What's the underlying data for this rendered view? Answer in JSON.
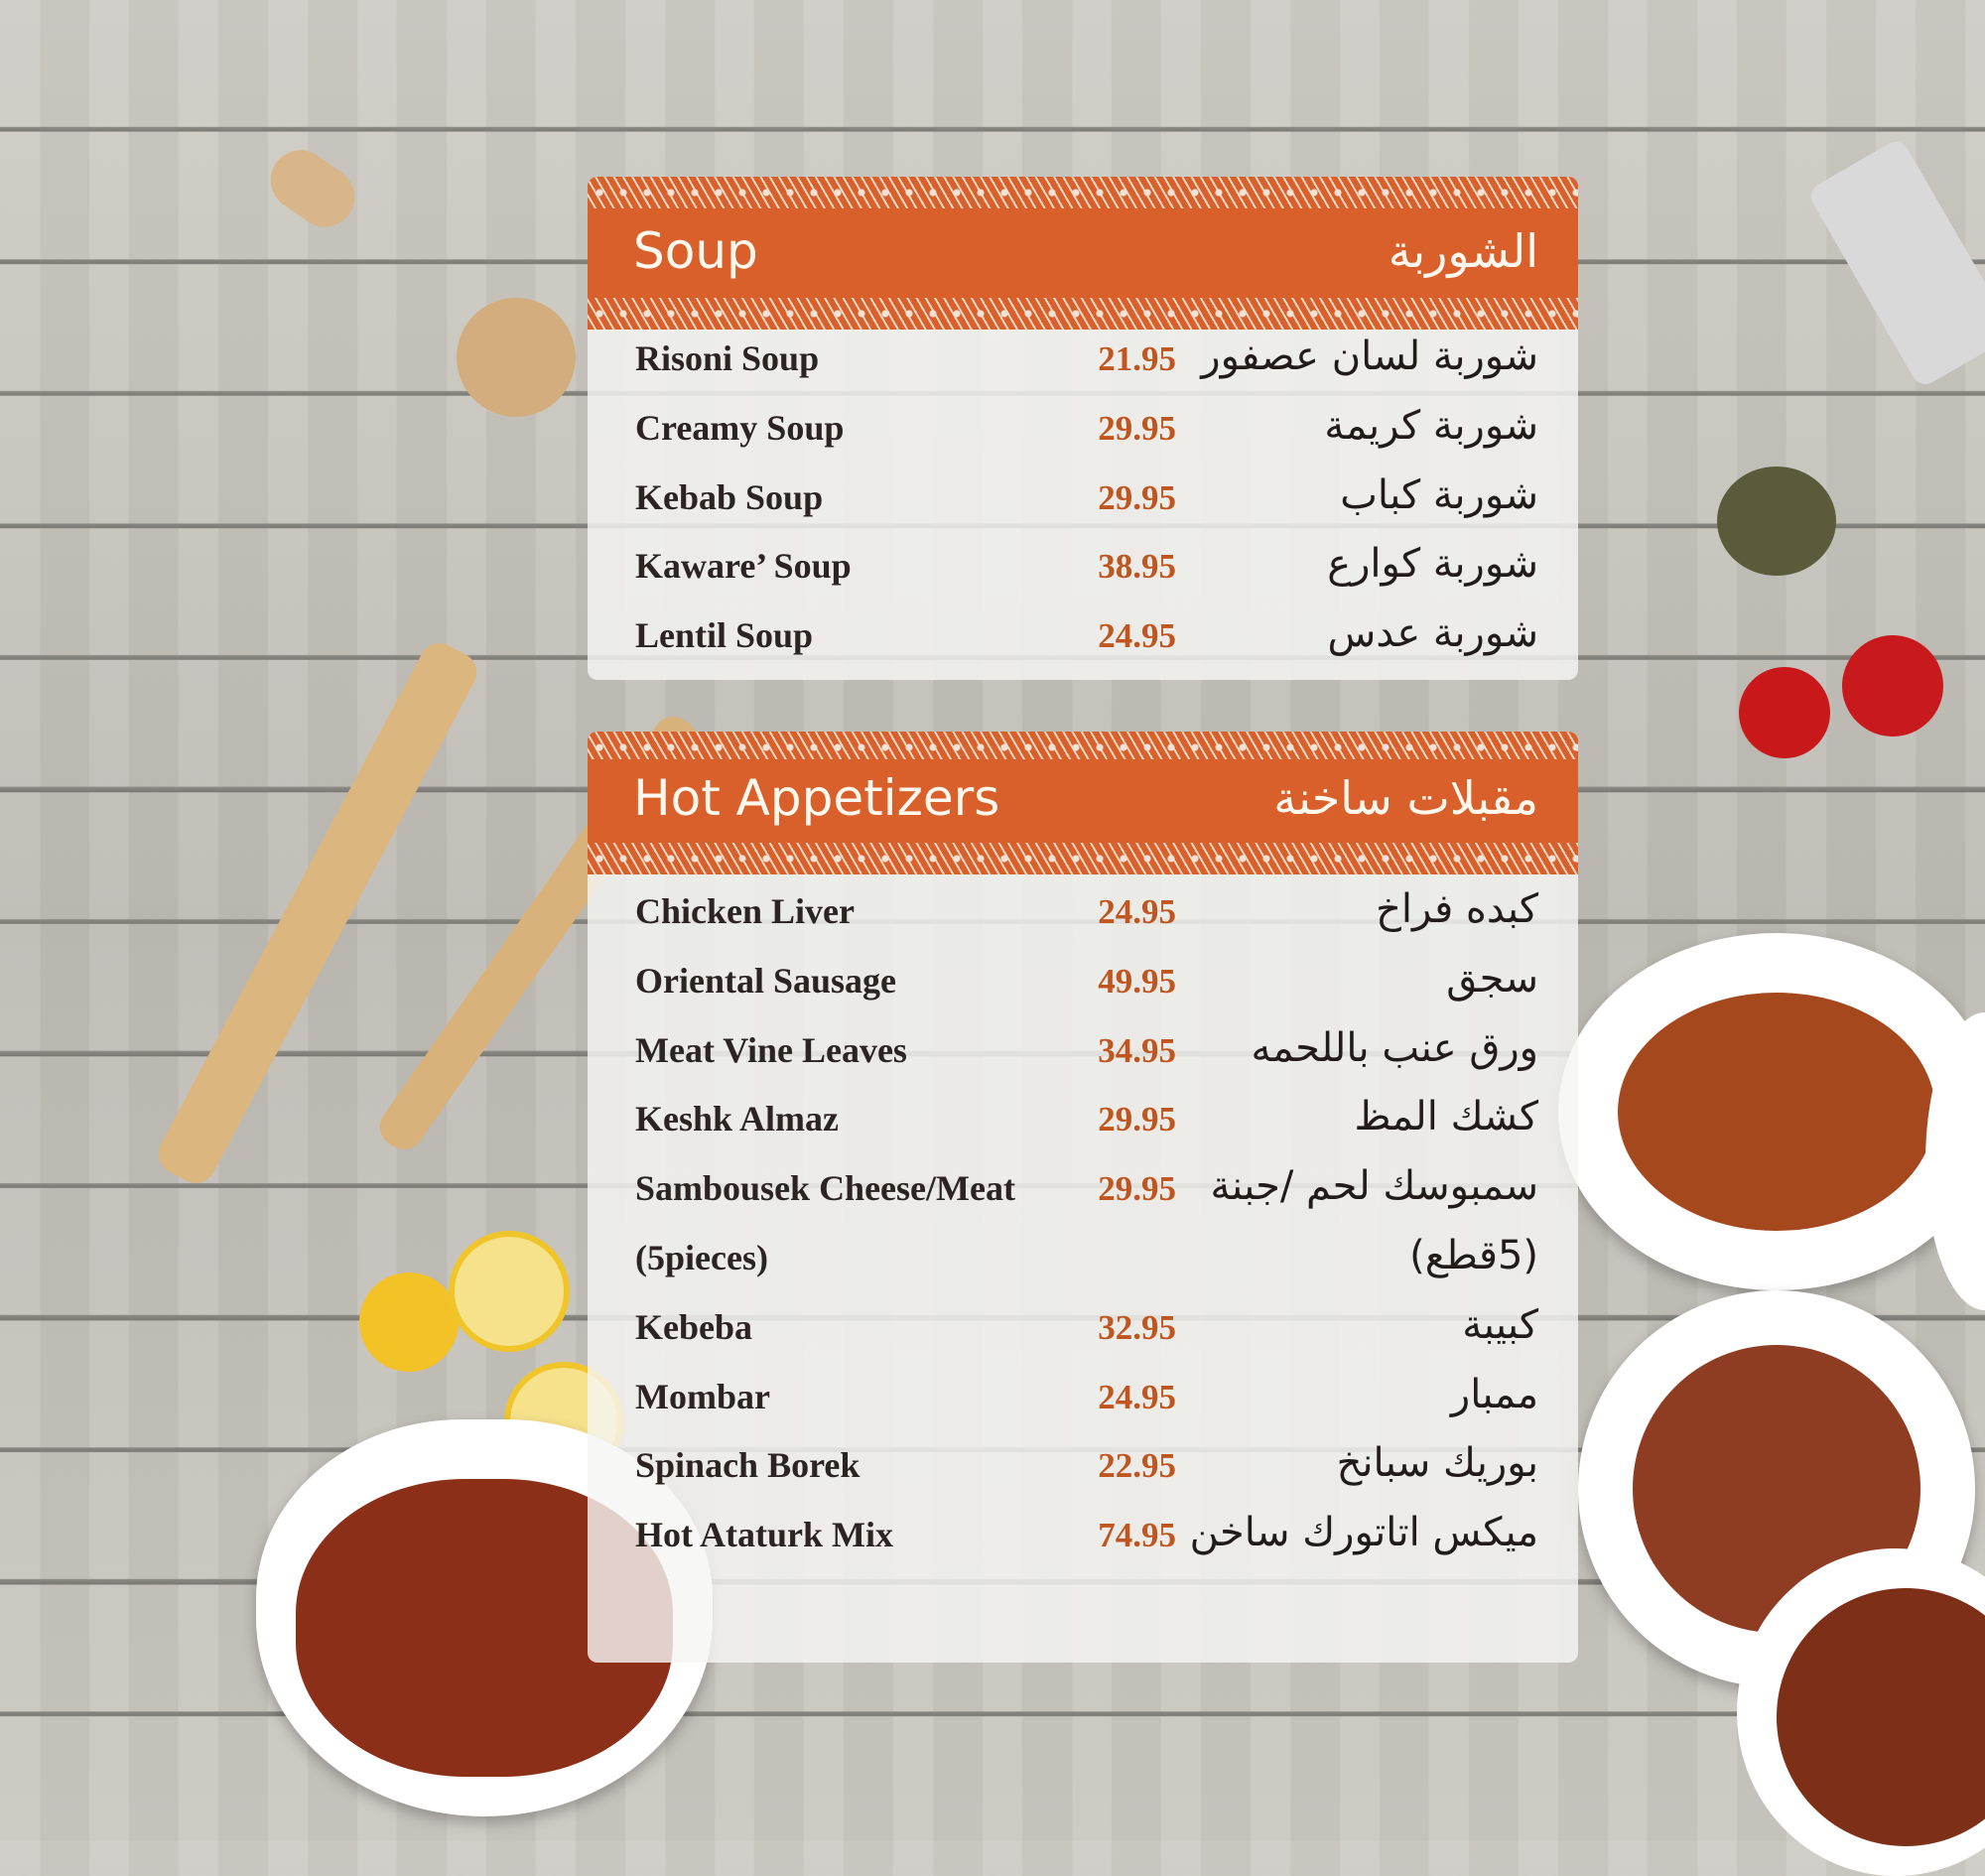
{
  "sections": [
    {
      "title": "Soup",
      "title_ar": "الشوربة",
      "items": [
        {
          "name": "Risoni Soup",
          "price": "21.95",
          "name_ar": "شوربة لسان عصفور"
        },
        {
          "name": "Creamy Soup",
          "price": "29.95",
          "name_ar": "شوربة كريمة"
        },
        {
          "name": "Kebab Soup",
          "price": "29.95",
          "name_ar": "شوربة كباب"
        },
        {
          "name": "Kaware’ Soup",
          "price": "38.95",
          "name_ar": "شوربة كوارع"
        },
        {
          "name": "Lentil Soup",
          "price": "24.95",
          "name_ar": "شوربة عدس"
        }
      ]
    },
    {
      "title": "Hot Appetizers",
      "title_ar": "مقبلات ساخنة",
      "items": [
        {
          "name": "Chicken Liver",
          "price": "24.95",
          "name_ar": "كبده فراخ"
        },
        {
          "name": "Oriental Sausage",
          "price": "49.95",
          "name_ar": "سجق"
        },
        {
          "name": "Meat Vine Leaves",
          "price": "34.95",
          "name_ar": "ورق عنب باللحمه"
        },
        {
          "name": "Keshk Almaz",
          "price": "29.95",
          "name_ar": "كشك المظ"
        },
        {
          "name": "Sambousek Cheese/Meat",
          "price": "29.95",
          "name_ar": "سمبوسك لحم /جبنة"
        },
        {
          "name": "(5pieces)",
          "price": "",
          "name_ar": "(5قطع)"
        },
        {
          "name": "Kebeba",
          "price": "32.95",
          "name_ar": "كبيبة"
        },
        {
          "name": "Mombar",
          "price": "24.95",
          "name_ar": "ممبار"
        },
        {
          "name": "Spinach Borek",
          "price": "22.95",
          "name_ar": "بوريك سبانخ"
        },
        {
          "name": "Hot Ataturk Mix",
          "price": "74.95",
          "name_ar": "ميكس اتاتورك ساخن"
        }
      ]
    }
  ],
  "colors": {
    "accent": "#d9602a",
    "price": "#c0561f",
    "text": "#2b2420"
  }
}
